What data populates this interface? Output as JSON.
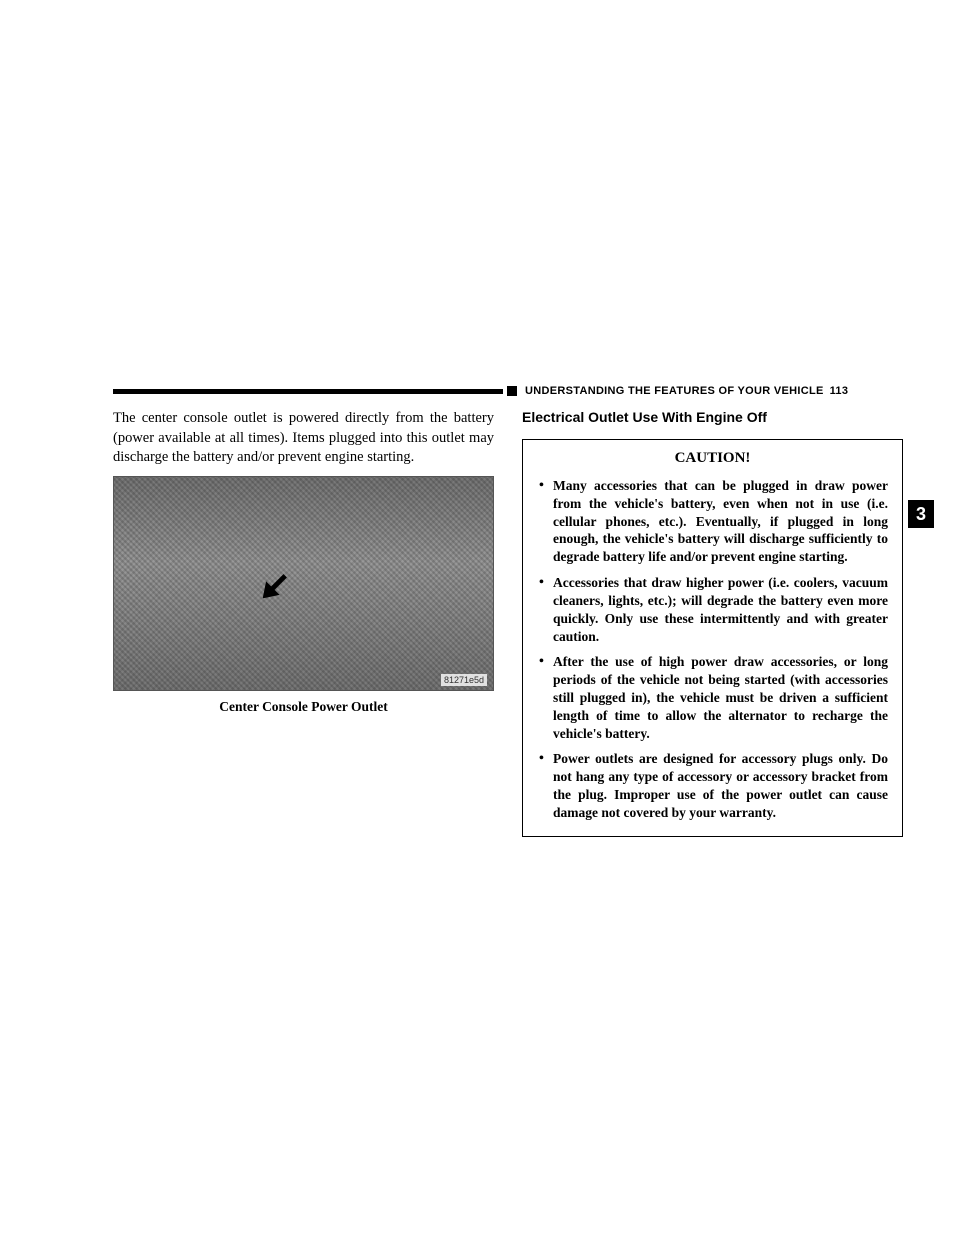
{
  "header": {
    "section_title": "UNDERSTANDING THE FEATURES OF YOUR VEHICLE",
    "page_number": "113"
  },
  "side_tab": "3",
  "left_column": {
    "intro_paragraph": "The center console outlet is powered directly from the battery (power available at all times). Items plugged into this outlet may discharge the battery and/or prevent engine starting.",
    "figure": {
      "image_code": "81271e5d",
      "caption": "Center Console Power Outlet"
    }
  },
  "right_column": {
    "subheading": "Electrical Outlet Use With Engine Off",
    "caution": {
      "title": "CAUTION!",
      "bullets": [
        "Many accessories that can be plugged in draw power from the vehicle's battery, even when not in use (i.e. cellular phones, etc.). Eventually, if plugged in long enough, the vehicle's battery will discharge sufficiently to degrade battery life and/or prevent engine starting.",
        "Accessories that draw higher power (i.e. coolers, vacuum cleaners, lights, etc.); will degrade the battery even more quickly. Only use these intermittently and with greater caution.",
        "After the use of high power draw accessories, or long periods of the vehicle not being started (with accessories still plugged in), the vehicle must be driven a sufficient length of time to allow the alternator to recharge the vehicle's battery.",
        "Power outlets are designed for accessory plugs only. Do not hang any type of accessory or accessory bracket from the plug. Improper use of the power outlet can cause damage not covered by your warranty."
      ]
    }
  }
}
